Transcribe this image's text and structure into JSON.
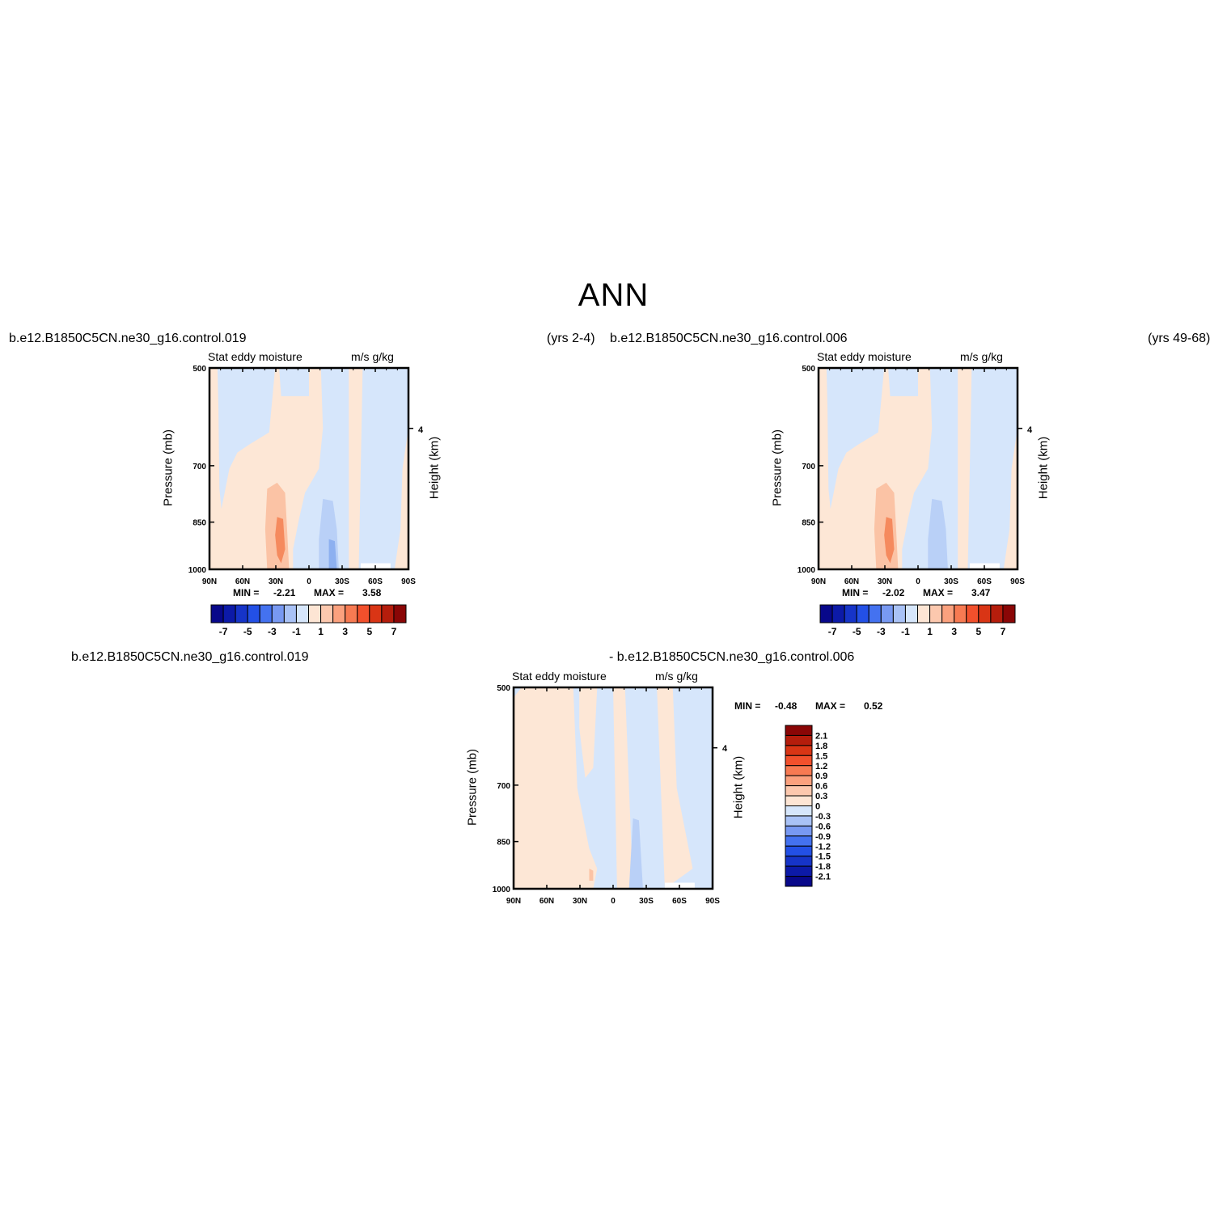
{
  "title": "ANN",
  "top_left": {
    "case_name": "b.e12.B1850C5CN.ne30_g16.control.019",
    "years": "(yrs 2-4)",
    "min_label": "MIN =",
    "min_value": "-2.21",
    "max_label": "MAX =",
    "max_value": "3.58"
  },
  "top_right": {
    "case_name": "b.e12.B1850C5CN.ne30_g16.control.006",
    "years": "(yrs 49-68)",
    "min_label": "MIN =",
    "min_value": "-2.02",
    "max_label": "MAX =",
    "max_value": "3.47"
  },
  "difference": {
    "case_a": "b.e12.B1850C5CN.ne30_g16.control.019",
    "case_b": "- b.e12.B1850C5CN.ne30_g16.control.006",
    "min_label": "MIN =",
    "min_value": "-0.48",
    "max_label": "MAX =",
    "max_value": "0.52"
  },
  "panel_text": {
    "left_title": "Stat eddy moisture",
    "right_title": "m/s g/kg",
    "ylabel": "Pressure (mb)",
    "ylabel_right": "Height (km)",
    "height_tick": "4"
  },
  "chart_data": [
    {
      "type": "heatmap",
      "x_ticks": [
        "90N",
        "60N",
        "30N",
        "0",
        "30S",
        "60S",
        "90S"
      ],
      "y_ticks": [
        "500",
        "700",
        "850",
        "1000"
      ],
      "y_tick_values": [
        500,
        700,
        850,
        1000
      ],
      "ylim": [
        1000,
        500
      ],
      "colorbar_labels": [
        "-7",
        "-5",
        "-3",
        "-1",
        "1",
        "3",
        "5",
        "7"
      ],
      "colorbar_levels": [
        -8,
        -7,
        -6,
        -5,
        -4,
        -3,
        -2,
        -1,
        0,
        1,
        2,
        3,
        4,
        5,
        6,
        7,
        8
      ],
      "min": -2.21,
      "max": 3.58
    },
    {
      "type": "heatmap",
      "x_ticks": [
        "90N",
        "60N",
        "30N",
        "0",
        "30S",
        "60S",
        "90S"
      ],
      "y_ticks": [
        "500",
        "700",
        "850",
        "1000"
      ],
      "y_tick_values": [
        500,
        700,
        850,
        1000
      ],
      "ylim": [
        1000,
        500
      ],
      "colorbar_labels": [
        "-7",
        "-5",
        "-3",
        "-1",
        "1",
        "3",
        "5",
        "7"
      ],
      "colorbar_levels": [
        -8,
        -7,
        -6,
        -5,
        -4,
        -3,
        -2,
        -1,
        0,
        1,
        2,
        3,
        4,
        5,
        6,
        7,
        8
      ],
      "min": -2.02,
      "max": 3.47
    },
    {
      "type": "heatmap",
      "x_ticks": [
        "90N",
        "60N",
        "30N",
        "0",
        "30S",
        "60S",
        "90S"
      ],
      "y_ticks": [
        "500",
        "700",
        "850",
        "1000"
      ],
      "y_tick_values": [
        500,
        700,
        850,
        1000
      ],
      "ylim": [
        1000,
        500
      ],
      "colorbar_labels": [
        "2.1",
        "1.8",
        "1.5",
        "1.2",
        "0.9",
        "0.6",
        "0.3",
        "0",
        "-0.3",
        "-0.6",
        "-0.9",
        "-1.2",
        "-1.5",
        "-1.8",
        "-2.1"
      ],
      "min": -0.48,
      "max": 0.52
    }
  ],
  "colors": {
    "scale": [
      "#08088a",
      "#0c1aa8",
      "#1634c8",
      "#2350e6",
      "#4472f0",
      "#7899f2",
      "#a9c2f6",
      "#d6e6fb",
      "#fde5d4",
      "#fcc8ae",
      "#fba17e",
      "#f77a52",
      "#f2502c",
      "#d93515",
      "#b51d0c",
      "#8a0606"
    ],
    "neg_fill": "#d6e6fb",
    "neg2_fill": "#b9d0f7",
    "neg3_fill": "#8db0f0",
    "pos_fill": "#fde7d6",
    "pos2_fill": "#fbc3a5",
    "pos3_fill": "#f58a5e"
  }
}
